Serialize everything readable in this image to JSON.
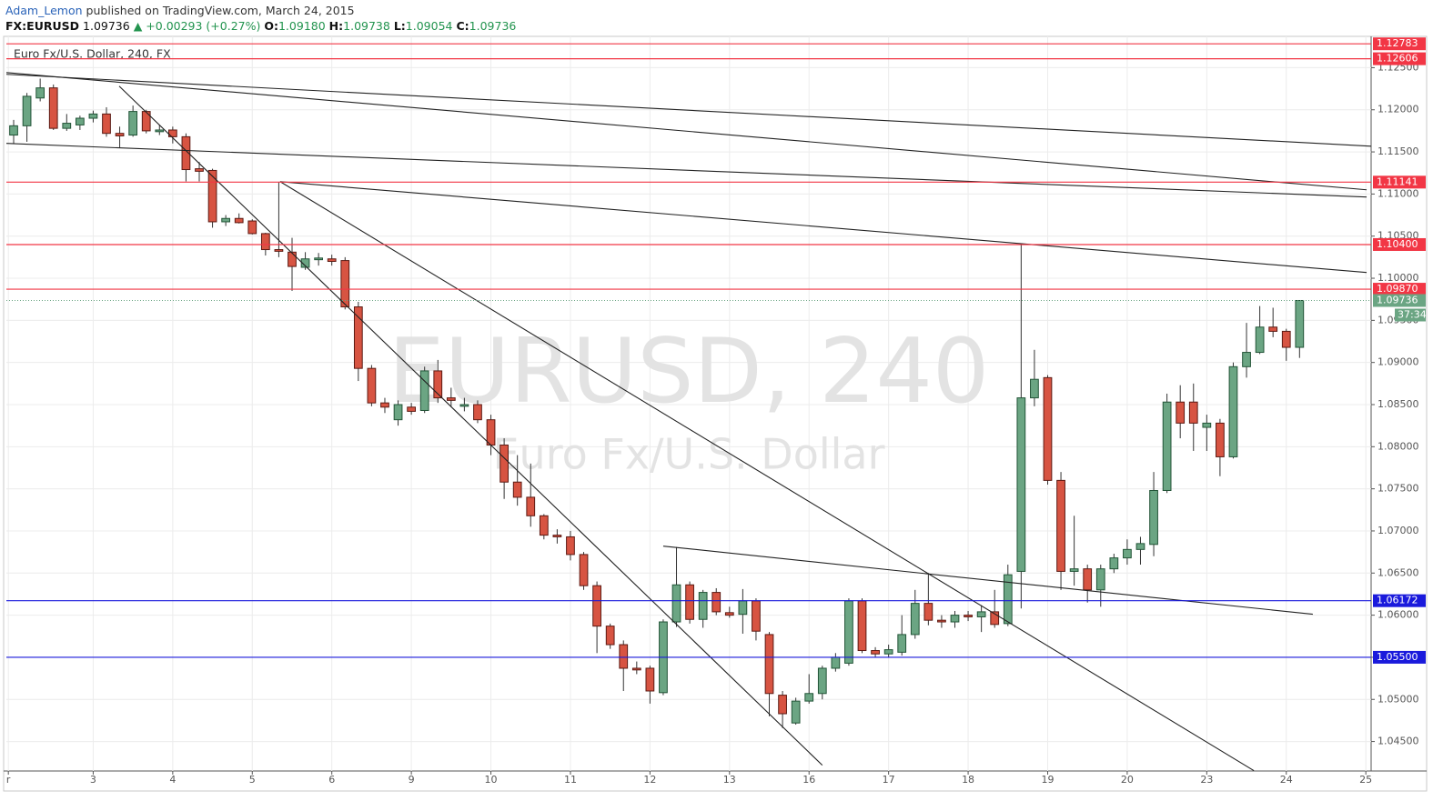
{
  "header": {
    "author": "Adam_Lemon",
    "published": "published on TradingView.com, March 24, 2015",
    "symbol": "FX:EURUSD",
    "last": "1.09736",
    "change": "▲ +0.00293 (+0.27%)",
    "ohlc": [
      {
        "label": "O:",
        "value": "1.09180"
      },
      {
        "label": "H:",
        "value": "1.09738"
      },
      {
        "label": "L:",
        "value": "1.09054"
      },
      {
        "label": "C:",
        "value": "1.09736"
      }
    ]
  },
  "chart_data": {
    "type": "candlestick",
    "legend": "Euro Fx/U.S. Dollar, 240, FX",
    "watermark": "EURUSD, 240",
    "watermark_subtitle": "Euro Fx/U.S. Dollar",
    "up_color": "#6ba583",
    "down_color": "#d75442",
    "grid": true,
    "xlim": [
      -0.55,
      102.4
    ],
    "ylim": [
      1.0415,
      1.1285
    ],
    "xticks": [
      {
        "value": -0.4,
        "label": "r"
      },
      {
        "value": 6,
        "label": "3"
      },
      {
        "value": 12,
        "label": "4"
      },
      {
        "value": 18,
        "label": "5"
      },
      {
        "value": 24,
        "label": "6"
      },
      {
        "value": 30,
        "label": "9"
      },
      {
        "value": 36,
        "label": "10"
      },
      {
        "value": 42,
        "label": "11"
      },
      {
        "value": 48,
        "label": "12"
      },
      {
        "value": 54,
        "label": "13"
      },
      {
        "value": 60,
        "label": "16"
      },
      {
        "value": 66,
        "label": "17"
      },
      {
        "value": 72,
        "label": "18"
      },
      {
        "value": 78,
        "label": "19"
      },
      {
        "value": 84,
        "label": "20"
      },
      {
        "value": 90,
        "label": "23"
      },
      {
        "value": 96,
        "label": "24"
      },
      {
        "value": 102,
        "label": "25"
      }
    ],
    "yticks": [
      {
        "value": 1.045,
        "label": "1.04500"
      },
      {
        "value": 1.05,
        "label": "1.05000"
      },
      {
        "value": 1.055,
        "label": "1.05500"
      },
      {
        "value": 1.06,
        "label": "1.06000"
      },
      {
        "value": 1.065,
        "label": "1.06500"
      },
      {
        "value": 1.07,
        "label": "1.07000"
      },
      {
        "value": 1.075,
        "label": "1.07500"
      },
      {
        "value": 1.08,
        "label": "1.08000"
      },
      {
        "value": 1.085,
        "label": "1.08500"
      },
      {
        "value": 1.09,
        "label": "1.09000"
      },
      {
        "value": 1.095,
        "label": "1.09500"
      },
      {
        "value": 1.1,
        "label": "1.10000"
      },
      {
        "value": 1.105,
        "label": "1.10500"
      },
      {
        "value": 1.11,
        "label": "1.11000"
      },
      {
        "value": 1.115,
        "label": "1.11500"
      },
      {
        "value": 1.12,
        "label": "1.12000"
      },
      {
        "value": 1.125,
        "label": "1.12500"
      }
    ],
    "open": [
      1.117,
      1.1181,
      1.1214,
      1.1226,
      1.1178,
      1.1182,
      1.119,
      1.1195,
      1.1172,
      1.117,
      1.1198,
      1.1174,
      1.1176,
      1.1168,
      1.113,
      1.1128,
      1.1067,
      1.1071,
      1.1068,
      1.1053,
      1.1034,
      1.1031,
      1.1013,
      1.1022,
      1.1023,
      1.1021,
      1.0966,
      1.0893,
      1.0852,
      1.0832,
      1.0847,
      1.0843,
      1.089,
      1.0858,
      1.0848,
      1.085,
      1.0832,
      1.0802,
      1.0758,
      1.074,
      1.0718,
      1.0695,
      1.0693,
      1.0672,
      1.0635,
      1.0587,
      1.0565,
      1.0537,
      1.0537,
      1.0508,
      1.0592,
      1.0636,
      1.0595,
      1.0627,
      1.0603,
      1.0601,
      1.0617,
      1.0577,
      1.0505,
      1.0472,
      1.0498,
      1.0507,
      1.0537,
      1.0543,
      1.0617,
      1.0558,
      1.0554,
      1.0556,
      1.0577,
      1.0614,
      1.0594,
      1.0592,
      1.06,
      1.0598,
      1.0604,
      1.059,
      1.0652,
      1.0858,
      1.0882,
      1.076,
      1.0652,
      1.0655,
      1.063,
      1.0655,
      1.0668,
      1.0678,
      1.0684,
      1.0748,
      1.0853,
      1.0853,
      1.0823,
      1.0828,
      1.0788,
      1.0895,
      1.0912,
      1.0942,
      1.0937,
      1.0918
    ],
    "high": [
      1.1188,
      1.122,
      1.1237,
      1.123,
      1.1195,
      1.1193,
      1.1199,
      1.1203,
      1.118,
      1.1205,
      1.12,
      1.1182,
      1.118,
      1.1172,
      1.1138,
      1.113,
      1.1075,
      1.1077,
      1.107,
      1.1054,
      1.1114,
      1.1048,
      1.1031,
      1.103,
      1.1028,
      1.1025,
      1.0972,
      1.0897,
      1.0858,
      1.0855,
      1.0852,
      1.0895,
      1.0903,
      1.087,
      1.0858,
      1.0855,
      1.0838,
      1.081,
      1.079,
      1.078,
      1.072,
      1.0702,
      1.07,
      1.0675,
      1.064,
      1.059,
      1.057,
      1.0545,
      1.054,
      1.0595,
      1.0681,
      1.064,
      1.063,
      1.0632,
      1.061,
      1.0631,
      1.062,
      1.058,
      1.051,
      1.0502,
      1.053,
      1.054,
      1.0555,
      1.062,
      1.062,
      1.0562,
      1.0565,
      1.06,
      1.063,
      1.065,
      1.06,
      1.0605,
      1.0605,
      1.0612,
      1.063,
      1.066,
      1.104,
      1.0915,
      1.0885,
      1.077,
      1.0718,
      1.066,
      1.066,
      1.0673,
      1.069,
      1.0693,
      1.077,
      1.0863,
      1.0873,
      1.0875,
      1.0838,
      1.0833,
      1.09,
      1.0947,
      1.0967,
      1.0965,
      1.094,
      1.09738
    ],
    "low": [
      1.116,
      1.1162,
      1.121,
      1.1176,
      1.1175,
      1.1176,
      1.1185,
      1.1168,
      1.1155,
      1.1168,
      1.1172,
      1.117,
      1.116,
      1.1115,
      1.1115,
      1.106,
      1.1062,
      1.1065,
      1.1052,
      1.1027,
      1.1025,
      1.0985,
      1.101,
      1.1015,
      1.1015,
      1.0963,
      1.0878,
      1.0848,
      1.084,
      1.0825,
      1.0838,
      1.084,
      1.0852,
      1.0848,
      1.0842,
      1.0828,
      1.079,
      1.0738,
      1.073,
      1.0705,
      1.069,
      1.0685,
      1.0665,
      1.063,
      1.0555,
      1.056,
      1.051,
      1.053,
      1.0495,
      1.0505,
      1.0586,
      1.059,
      1.0585,
      1.06,
      1.0597,
      1.0578,
      1.057,
      1.048,
      1.0466,
      1.047,
      1.0495,
      1.05,
      1.0533,
      1.054,
      1.0555,
      1.055,
      1.055,
      1.0552,
      1.0572,
      1.0588,
      1.0585,
      1.0585,
      1.0593,
      1.058,
      1.0585,
      1.0587,
      1.0608,
      1.0848,
      1.0755,
      1.063,
      1.0635,
      1.0615,
      1.061,
      1.065,
      1.066,
      1.066,
      1.067,
      1.0745,
      1.081,
      1.0795,
      1.0795,
      1.0765,
      1.0786,
      1.0882,
      1.091,
      1.093,
      1.0902,
      1.09054
    ],
    "close": [
      1.1181,
      1.1216,
      1.1226,
      1.1178,
      1.1184,
      1.119,
      1.1195,
      1.1172,
      1.1169,
      1.1198,
      1.1175,
      1.1176,
      1.1168,
      1.1129,
      1.1127,
      1.1067,
      1.1071,
      1.1066,
      1.1053,
      1.1034,
      1.1032,
      1.1014,
      1.1023,
      1.1024,
      1.102,
      1.0966,
      1.0893,
      1.0852,
      1.0847,
      1.085,
      1.0842,
      1.089,
      1.0858,
      1.0855,
      1.085,
      1.0832,
      1.0802,
      1.0758,
      1.074,
      1.0718,
      1.0695,
      1.0693,
      1.0672,
      1.0635,
      1.0587,
      1.0565,
      1.0537,
      1.0535,
      1.051,
      1.0592,
      1.0636,
      1.0595,
      1.0627,
      1.0604,
      1.06,
      1.0617,
      1.0581,
      1.0507,
      1.0483,
      1.0498,
      1.0507,
      1.0537,
      1.055,
      1.0617,
      1.0558,
      1.0554,
      1.0559,
      1.0577,
      1.0614,
      1.0594,
      1.0592,
      1.06,
      1.0598,
      1.0604,
      1.0589,
      1.0648,
      1.0858,
      1.088,
      1.076,
      1.0652,
      1.0655,
      1.063,
      1.0655,
      1.0668,
      1.0678,
      1.0685,
      1.0748,
      1.0853,
      1.0828,
      1.0828,
      1.0828,
      1.0788,
      1.0895,
      1.0912,
      1.0942,
      1.0937,
      1.0918,
      1.09736
    ],
    "levels": [
      {
        "value": 1.12783,
        "label": "1.12783",
        "color": "#f23645"
      },
      {
        "value": 1.12606,
        "label": "1.12606",
        "color": "#f23645"
      },
      {
        "value": 1.11141,
        "label": "1.11141",
        "color": "#f23645"
      },
      {
        "value": 1.104,
        "label": "1.10400",
        "color": "#f23645"
      },
      {
        "value": 1.0987,
        "label": "1.09870",
        "color": "#f23645"
      },
      {
        "value": 1.06172,
        "label": "1.06172",
        "color": "#1a1adc"
      },
      {
        "value": 1.055,
        "label": "1.05500",
        "color": "#1a1adc"
      }
    ],
    "last_price": {
      "value": 1.09736,
      "label": "1.09736",
      "color": "#6ba583"
    },
    "countdown": "37:34",
    "trend_lines": [
      {
        "x": [
          -0.55,
          102.4
        ],
        "y": [
          1.12421,
          1.11568
        ]
      },
      {
        "x": [
          -0.55,
          102.06
        ],
        "y": [
          1.12442,
          1.1105
        ]
      },
      {
        "x": [
          -0.55,
          102.06
        ],
        "y": [
          1.11601,
          1.10964
        ]
      },
      {
        "x": [
          20.1,
          102.06
        ],
        "y": [
          1.11147,
          1.10068
        ]
      },
      {
        "x": [
          7.96,
          61.0
        ],
        "y": [
          1.12281,
          1.04219
        ]
      },
      {
        "x": [
          20.1,
          93.55
        ],
        "y": [
          1.11147,
          1.04155
        ]
      },
      {
        "x": [
          49.0,
          98.0
        ],
        "y": [
          1.0682,
          1.06011
        ]
      }
    ]
  }
}
